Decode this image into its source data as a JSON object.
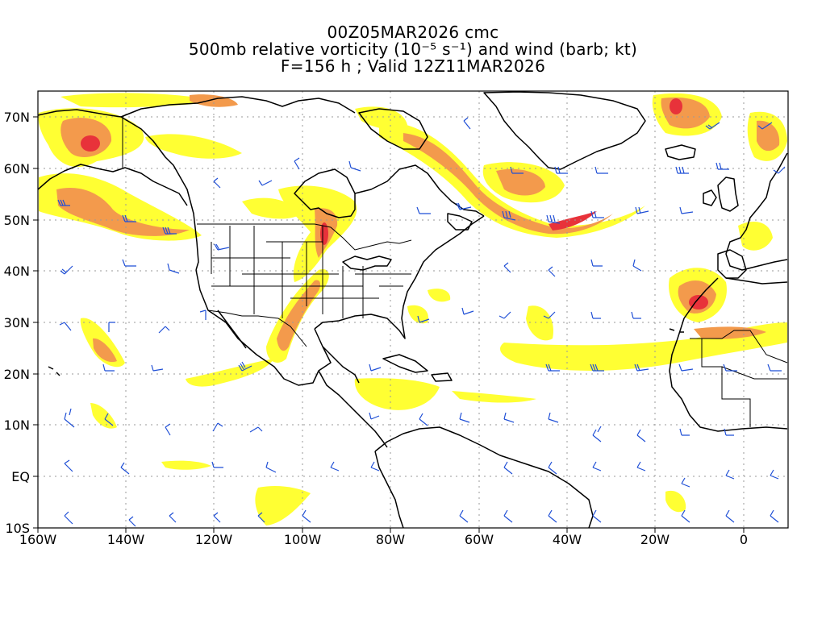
{
  "title": {
    "line1": "00Z05MAR2026 cmc",
    "line2": "500mb relative vorticity (10⁻⁵ s⁻¹) and wind (barb; kt)",
    "line3": "F=156 h ; Valid 12Z11MAR2026"
  },
  "axes": {
    "x_ticks": [
      "160W",
      "140W",
      "120W",
      "100W",
      "80W",
      "60W",
      "40W",
      "20W",
      "0"
    ],
    "y_ticks": [
      "70N",
      "60N",
      "50N",
      "40N",
      "30N",
      "20N",
      "10N",
      "EQ",
      "10S"
    ],
    "lon_range": [
      -160,
      10
    ],
    "lat_range": [
      -10,
      75
    ]
  },
  "colors": {
    "vort_low": "#ffff33",
    "vort_mid": "#ffd24d",
    "vort_high": "#f39a4c",
    "vort_max": "#e8323a",
    "wind_barb": "#1f4fd6",
    "coast": "#000000",
    "grid": "#9a9a9a"
  },
  "layers": {
    "vorticity": "shaded",
    "wind": "barbs",
    "coastlines": "black",
    "grid": "dotted"
  }
}
